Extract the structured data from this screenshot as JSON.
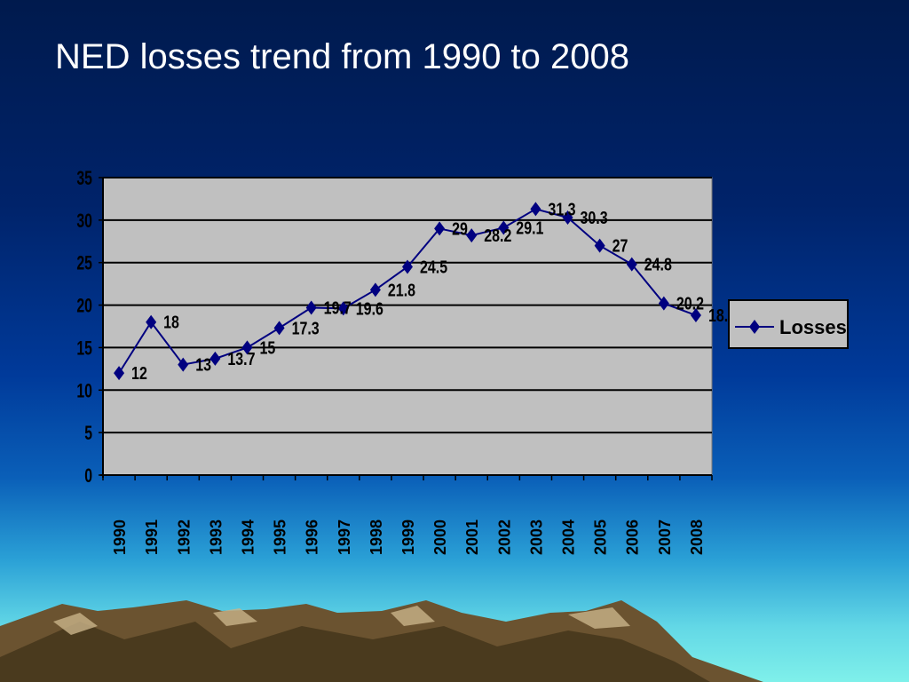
{
  "slide": {
    "title": "NED losses trend from 1990 to 2008"
  },
  "chart_data": {
    "type": "line",
    "title": "",
    "xlabel": "",
    "ylabel": "",
    "categories": [
      "1990",
      "1991",
      "1992",
      "1993",
      "1994",
      "1995",
      "1996",
      "1997",
      "1998",
      "1999",
      "2000",
      "2001",
      "2002",
      "2003",
      "2004",
      "2005",
      "2006",
      "2007",
      "2008"
    ],
    "series": [
      {
        "name": "Losses",
        "values": [
          12,
          18,
          13,
          13.7,
          15,
          17.3,
          19.7,
          19.6,
          21.8,
          24.5,
          29,
          28.2,
          29.1,
          31.3,
          30.3,
          27,
          24.8,
          20.2,
          18.8
        ],
        "color": "#000080"
      }
    ],
    "ylim": [
      0,
      35
    ],
    "yticks": [
      0,
      5,
      10,
      15,
      20,
      25,
      30,
      35
    ],
    "grid": true,
    "legend_position": "right",
    "plot_background": "#c0c0c0"
  }
}
